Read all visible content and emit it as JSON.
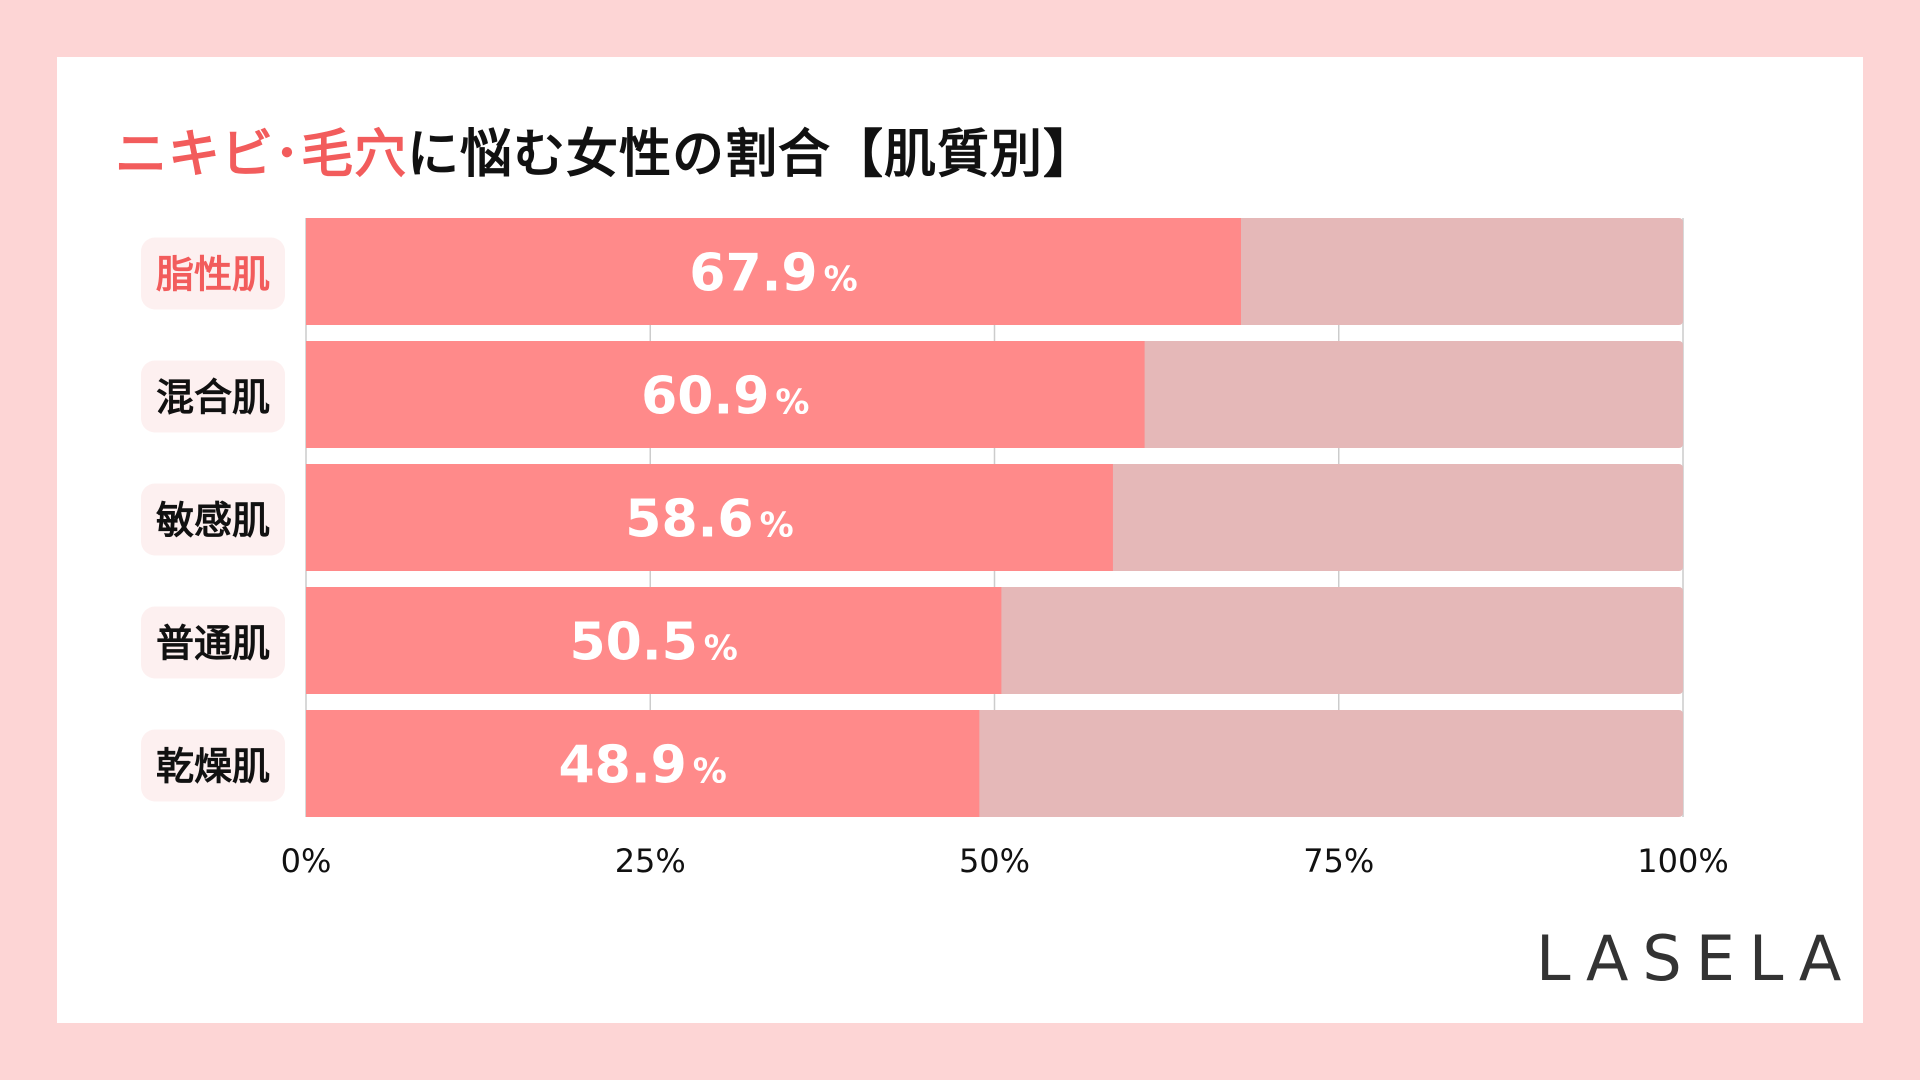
{
  "title": {
    "accent": "ニキビ･毛穴",
    "rest": "に悩む女性の割合【肌質別】"
  },
  "logo": "LASELA",
  "colors": {
    "background": "#fdd5d5",
    "bar": "#ff8a8a",
    "track": "#e5b8b8",
    "highlight_label": "#f25c5c",
    "label_bg": "#fdf0f0"
  },
  "chart_data": {
    "type": "bar",
    "orientation": "horizontal",
    "categories": [
      "脂性肌",
      "混合肌",
      "敏感肌",
      "普通肌",
      "乾燥肌"
    ],
    "highlight_category": "脂性肌",
    "values": [
      67.9,
      60.9,
      58.6,
      50.5,
      48.9
    ],
    "value_labels": [
      "67.9",
      "60.9",
      "58.6",
      "50.5",
      "48.9"
    ],
    "value_unit": "%",
    "xlim": [
      0,
      100
    ],
    "xticks": [
      0,
      25,
      50,
      75,
      100
    ],
    "xtick_labels": [
      "0%",
      "25%",
      "50%",
      "75%",
      "100%"
    ],
    "grid": true
  }
}
